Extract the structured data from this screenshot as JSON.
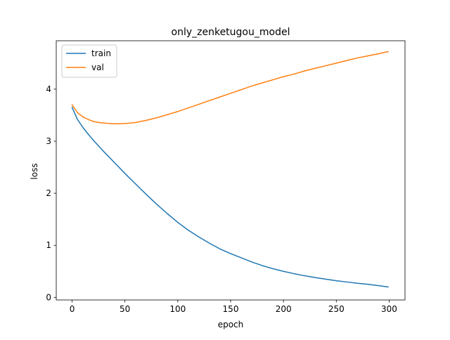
{
  "chart_data": {
    "type": "line",
    "title": "only_zenketugou_model",
    "xlabel": "epoch",
    "ylabel": "loss",
    "xlim": [
      -15,
      315
    ],
    "ylim": [
      -0.05,
      4.93
    ],
    "xticks": [
      0,
      50,
      100,
      150,
      200,
      250,
      300
    ],
    "yticks": [
      0,
      1,
      2,
      3,
      4
    ],
    "grid": false,
    "legend": "upper-left",
    "series": [
      {
        "name": "train",
        "color": "#1f77b4",
        "x": [
          0,
          5,
          10,
          15,
          20,
          25,
          30,
          40,
          50,
          60,
          70,
          80,
          90,
          100,
          110,
          120,
          130,
          140,
          150,
          160,
          170,
          180,
          190,
          200,
          210,
          220,
          230,
          240,
          250,
          260,
          270,
          280,
          290,
          299
        ],
        "y": [
          3.65,
          3.42,
          3.27,
          3.14,
          3.02,
          2.91,
          2.8,
          2.59,
          2.38,
          2.18,
          1.98,
          1.79,
          1.61,
          1.44,
          1.29,
          1.16,
          1.04,
          0.93,
          0.84,
          0.76,
          0.68,
          0.61,
          0.55,
          0.5,
          0.455,
          0.415,
          0.38,
          0.35,
          0.32,
          0.295,
          0.27,
          0.25,
          0.225,
          0.2
        ]
      },
      {
        "name": "val",
        "color": "#ff7f0e",
        "x": [
          0,
          5,
          10,
          15,
          20,
          25,
          30,
          35,
          40,
          45,
          50,
          55,
          60,
          70,
          80,
          90,
          100,
          110,
          120,
          130,
          140,
          150,
          160,
          170,
          180,
          190,
          200,
          210,
          220,
          230,
          240,
          250,
          260,
          270,
          280,
          290,
          299
        ],
        "y": [
          3.7,
          3.55,
          3.47,
          3.42,
          3.38,
          3.36,
          3.35,
          3.34,
          3.335,
          3.335,
          3.34,
          3.35,
          3.36,
          3.4,
          3.45,
          3.51,
          3.57,
          3.64,
          3.71,
          3.78,
          3.85,
          3.92,
          3.99,
          4.06,
          4.12,
          4.18,
          4.24,
          4.29,
          4.35,
          4.4,
          4.45,
          4.5,
          4.55,
          4.6,
          4.64,
          4.68,
          4.72
        ]
      }
    ]
  }
}
